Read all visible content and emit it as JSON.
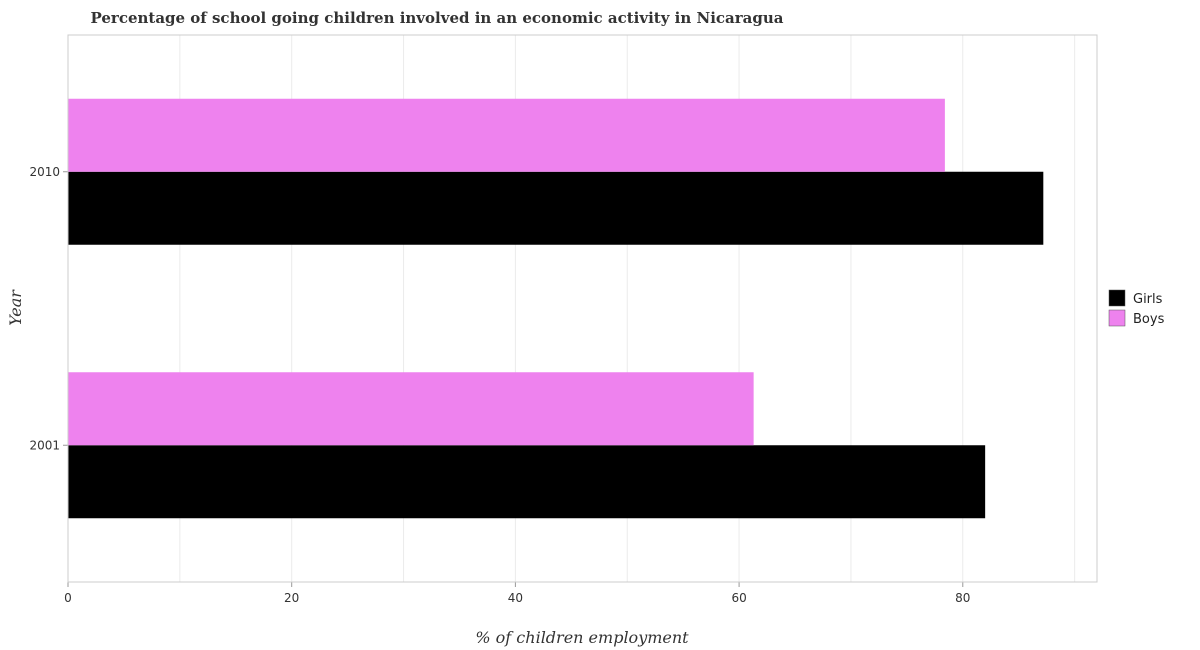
{
  "chart_data": {
    "type": "bar",
    "orientation": "horizontal",
    "title": "Percentage of school going children involved in an economic activity in Nicaragua",
    "xlabel": "% of children employment",
    "ylabel": "Year",
    "categories": [
      "2001",
      "2010"
    ],
    "series": [
      {
        "name": "Girls",
        "color": "#000000",
        "values": [
          82.0,
          87.2
        ]
      },
      {
        "name": "Boys",
        "color": "#ee82ee",
        "values": [
          61.3,
          78.4
        ]
      }
    ],
    "xlim": [
      0,
      92
    ],
    "xticks": [
      0,
      20,
      40,
      60,
      80
    ],
    "grid": true,
    "legend_position": "right"
  }
}
